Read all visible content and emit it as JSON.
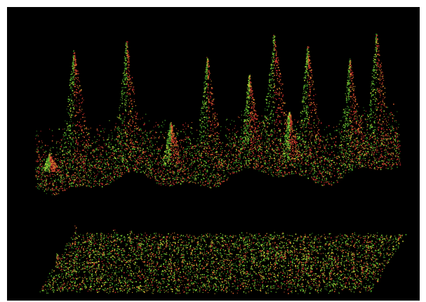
{
  "colors": {
    "background": "#000000",
    "frame": "#ffffff",
    "point_palette": [
      "#2f7a1f",
      "#4fae2b",
      "#8ad23a",
      "#c9d63a",
      "#d9a032",
      "#d35a2c",
      "#b8262a"
    ]
  },
  "scene": {
    "peak_count": 11,
    "layers": [
      "upper-terrain-surface",
      "lower-flat-surface"
    ]
  }
}
